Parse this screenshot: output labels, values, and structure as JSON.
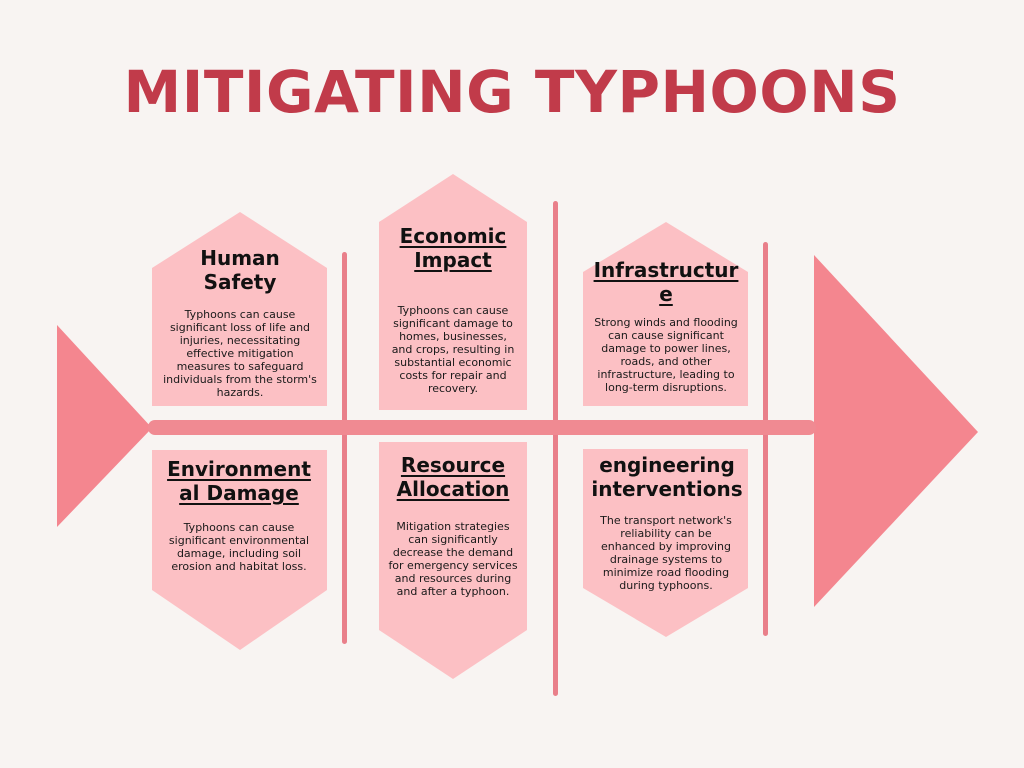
{
  "title": "MITIGATING TYPHOONS",
  "colors": {
    "background": "#f8f4f2",
    "title": "#c13b4a",
    "card": "#fcc0c4",
    "spine": "#f0848e",
    "arrow": "#f4868f"
  },
  "cards": {
    "human_safety": {
      "heading": "Human Safety",
      "body": "Typhoons can cause significant loss of life and injuries, necessitating effective mitigation measures to safeguard individuals from the storm's hazards."
    },
    "economic_impact": {
      "heading": "Economic Impact",
      "body": "Typhoons can cause significant damage to homes, businesses, and crops, resulting in substantial economic costs for repair and recovery."
    },
    "infrastructure": {
      "heading": "Infrastructure",
      "body": "Strong winds and flooding can cause significant damage to power lines, roads, and other infrastructure, leading to long-term disruptions."
    },
    "environmental_damage": {
      "heading": "Environmental Damage",
      "body": "Typhoons can cause significant environmental damage, including soil erosion and habitat loss."
    },
    "resource_allocation": {
      "heading": "Resource Allocation",
      "body": "Mitigation strategies can significantly decrease the demand for emergency services and resources during and after a typhoon."
    },
    "engineering_interventions": {
      "heading": "engineering interventions",
      "body": "The transport network's reliability can be enhanced by improving drainage systems to minimize road flooding during typhoons."
    }
  }
}
